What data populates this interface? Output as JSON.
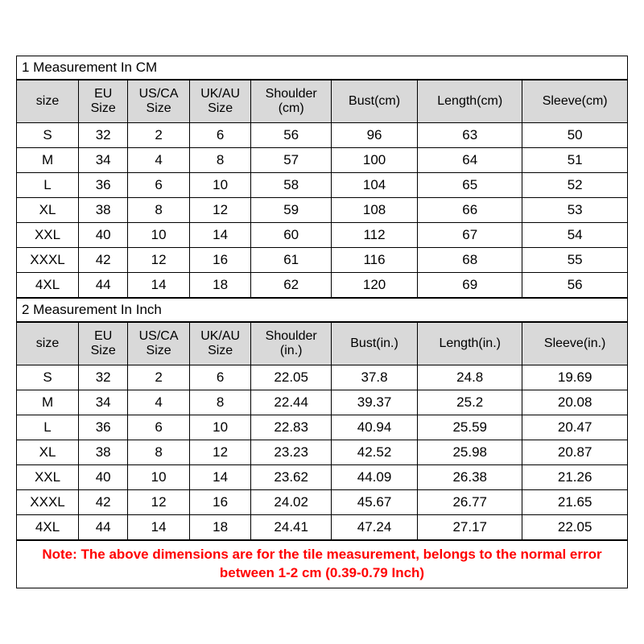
{
  "colors": {
    "header_bg": "#d9d9d9",
    "border": "#000000",
    "note_text": "#ff0000"
  },
  "sections": [
    {
      "title": "1 Measurement In CM",
      "columns": [
        "size",
        "EU Size",
        "US/CA Size",
        "UK/AU Size",
        "Shoulder (cm)",
        "Bust(cm)",
        "Length(cm)",
        "Sleeve(cm)"
      ],
      "rows": [
        [
          "S",
          "32",
          "2",
          "6",
          "56",
          "96",
          "63",
          "50"
        ],
        [
          "M",
          "34",
          "4",
          "8",
          "57",
          "100",
          "64",
          "51"
        ],
        [
          "L",
          "36",
          "6",
          "10",
          "58",
          "104",
          "65",
          "52"
        ],
        [
          "XL",
          "38",
          "8",
          "12",
          "59",
          "108",
          "66",
          "53"
        ],
        [
          "XXL",
          "40",
          "10",
          "14",
          "60",
          "112",
          "67",
          "54"
        ],
        [
          "XXXL",
          "42",
          "12",
          "16",
          "61",
          "116",
          "68",
          "55"
        ],
        [
          "4XL",
          "44",
          "14",
          "18",
          "62",
          "120",
          "69",
          "56"
        ]
      ]
    },
    {
      "title": "2 Measurement In Inch",
      "columns": [
        "size",
        "EU Size",
        "US/CA Size",
        "UK/AU Size",
        "Shoulder (in.)",
        "Bust(in.)",
        "Length(in.)",
        "Sleeve(in.)"
      ],
      "rows": [
        [
          "S",
          "32",
          "2",
          "6",
          "22.05",
          "37.8",
          "24.8",
          "19.69"
        ],
        [
          "M",
          "34",
          "4",
          "8",
          "22.44",
          "39.37",
          "25.2",
          "20.08"
        ],
        [
          "L",
          "36",
          "6",
          "10",
          "22.83",
          "40.94",
          "25.59",
          "20.47"
        ],
        [
          "XL",
          "38",
          "8",
          "12",
          "23.23",
          "42.52",
          "25.98",
          "20.87"
        ],
        [
          "XXL",
          "40",
          "10",
          "14",
          "23.62",
          "44.09",
          "26.38",
          "21.26"
        ],
        [
          "XXXL",
          "42",
          "12",
          "16",
          "24.02",
          "45.67",
          "26.77",
          "21.65"
        ],
        [
          "4XL",
          "44",
          "14",
          "18",
          "24.41",
          "47.24",
          "27.17",
          "22.05"
        ]
      ]
    }
  ],
  "note": "Note: The above dimensions are for the tile measurement, belongs to the normal error between 1-2 cm  (0.39-0.79  Inch)"
}
